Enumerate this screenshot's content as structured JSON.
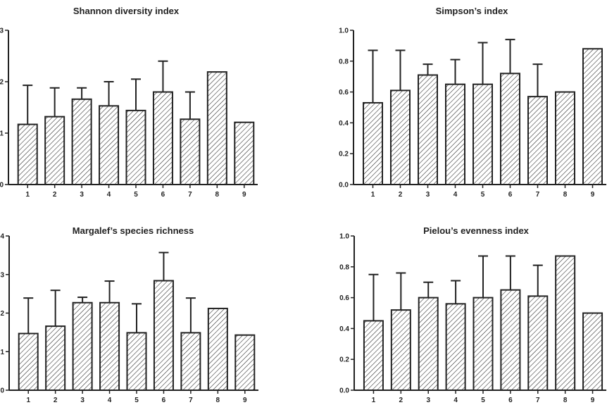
{
  "chart_data": [
    {
      "type": "bar",
      "title": "Shannon diversity index",
      "categories": [
        "1",
        "2",
        "3",
        "4",
        "5",
        "6",
        "7",
        "8",
        "9"
      ],
      "values": [
        1.17,
        1.32,
        1.66,
        1.53,
        1.44,
        1.8,
        1.27,
        2.19,
        1.21
      ],
      "error_upper": [
        1.93,
        1.88,
        1.88,
        2.0,
        2.05,
        2.4,
        1.8,
        null,
        null
      ],
      "ylim": [
        0,
        3
      ],
      "yticks": [
        "0",
        "1",
        "2",
        "3"
      ],
      "xlabel": "",
      "ylabel": "",
      "pattern": "diagonal-hatch",
      "grid": false
    },
    {
      "type": "bar",
      "title": "Simpson’s index",
      "categories": [
        "1",
        "2",
        "3",
        "4",
        "5",
        "6",
        "7",
        "8",
        "9"
      ],
      "values": [
        0.53,
        0.61,
        0.71,
        0.65,
        0.65,
        0.72,
        0.57,
        0.6,
        0.88
      ],
      "error_upper": [
        0.87,
        0.87,
        0.78,
        0.81,
        0.92,
        0.94,
        0.78,
        null,
        null
      ],
      "ylim": [
        0,
        1.0
      ],
      "yticks": [
        "0.0",
        "0.2",
        "0.4",
        "0.6",
        "0.8",
        "1.0"
      ],
      "xlabel": "",
      "ylabel": "",
      "pattern": "diagonal-hatch",
      "grid": false
    },
    {
      "type": "bar",
      "title": "Margalef’s species richness",
      "categories": [
        "1",
        "2",
        "3",
        "4",
        "5",
        "6",
        "7",
        "8",
        "9"
      ],
      "values": [
        1.47,
        1.66,
        2.27,
        2.27,
        1.49,
        2.84,
        1.49,
        2.12,
        1.43
      ],
      "error_upper": [
        2.39,
        2.59,
        2.41,
        2.83,
        2.24,
        3.57,
        2.39,
        null,
        null
      ],
      "ylim": [
        0,
        4
      ],
      "yticks": [
        "0",
        "1",
        "2",
        "3",
        "4"
      ],
      "xlabel": "",
      "ylabel": "",
      "pattern": "diagonal-hatch",
      "grid": false
    },
    {
      "type": "bar",
      "title": "Pielou’s evenness index",
      "categories": [
        "1",
        "2",
        "3",
        "4",
        "5",
        "6",
        "7",
        "8",
        "9"
      ],
      "values": [
        0.45,
        0.52,
        0.6,
        0.56,
        0.6,
        0.65,
        0.61,
        0.87,
        0.5
      ],
      "error_upper": [
        0.75,
        0.76,
        0.7,
        0.71,
        0.87,
        0.87,
        0.81,
        null,
        null
      ],
      "ylim": [
        0,
        1.0
      ],
      "yticks": [
        "0.0",
        "0.2",
        "0.4",
        "0.6",
        "0.8",
        "1.0"
      ],
      "xlabel": "",
      "ylabel": "",
      "pattern": "diagonal-hatch",
      "grid": false
    }
  ],
  "colors": {
    "ink": "#222222",
    "background": "#ffffff"
  }
}
